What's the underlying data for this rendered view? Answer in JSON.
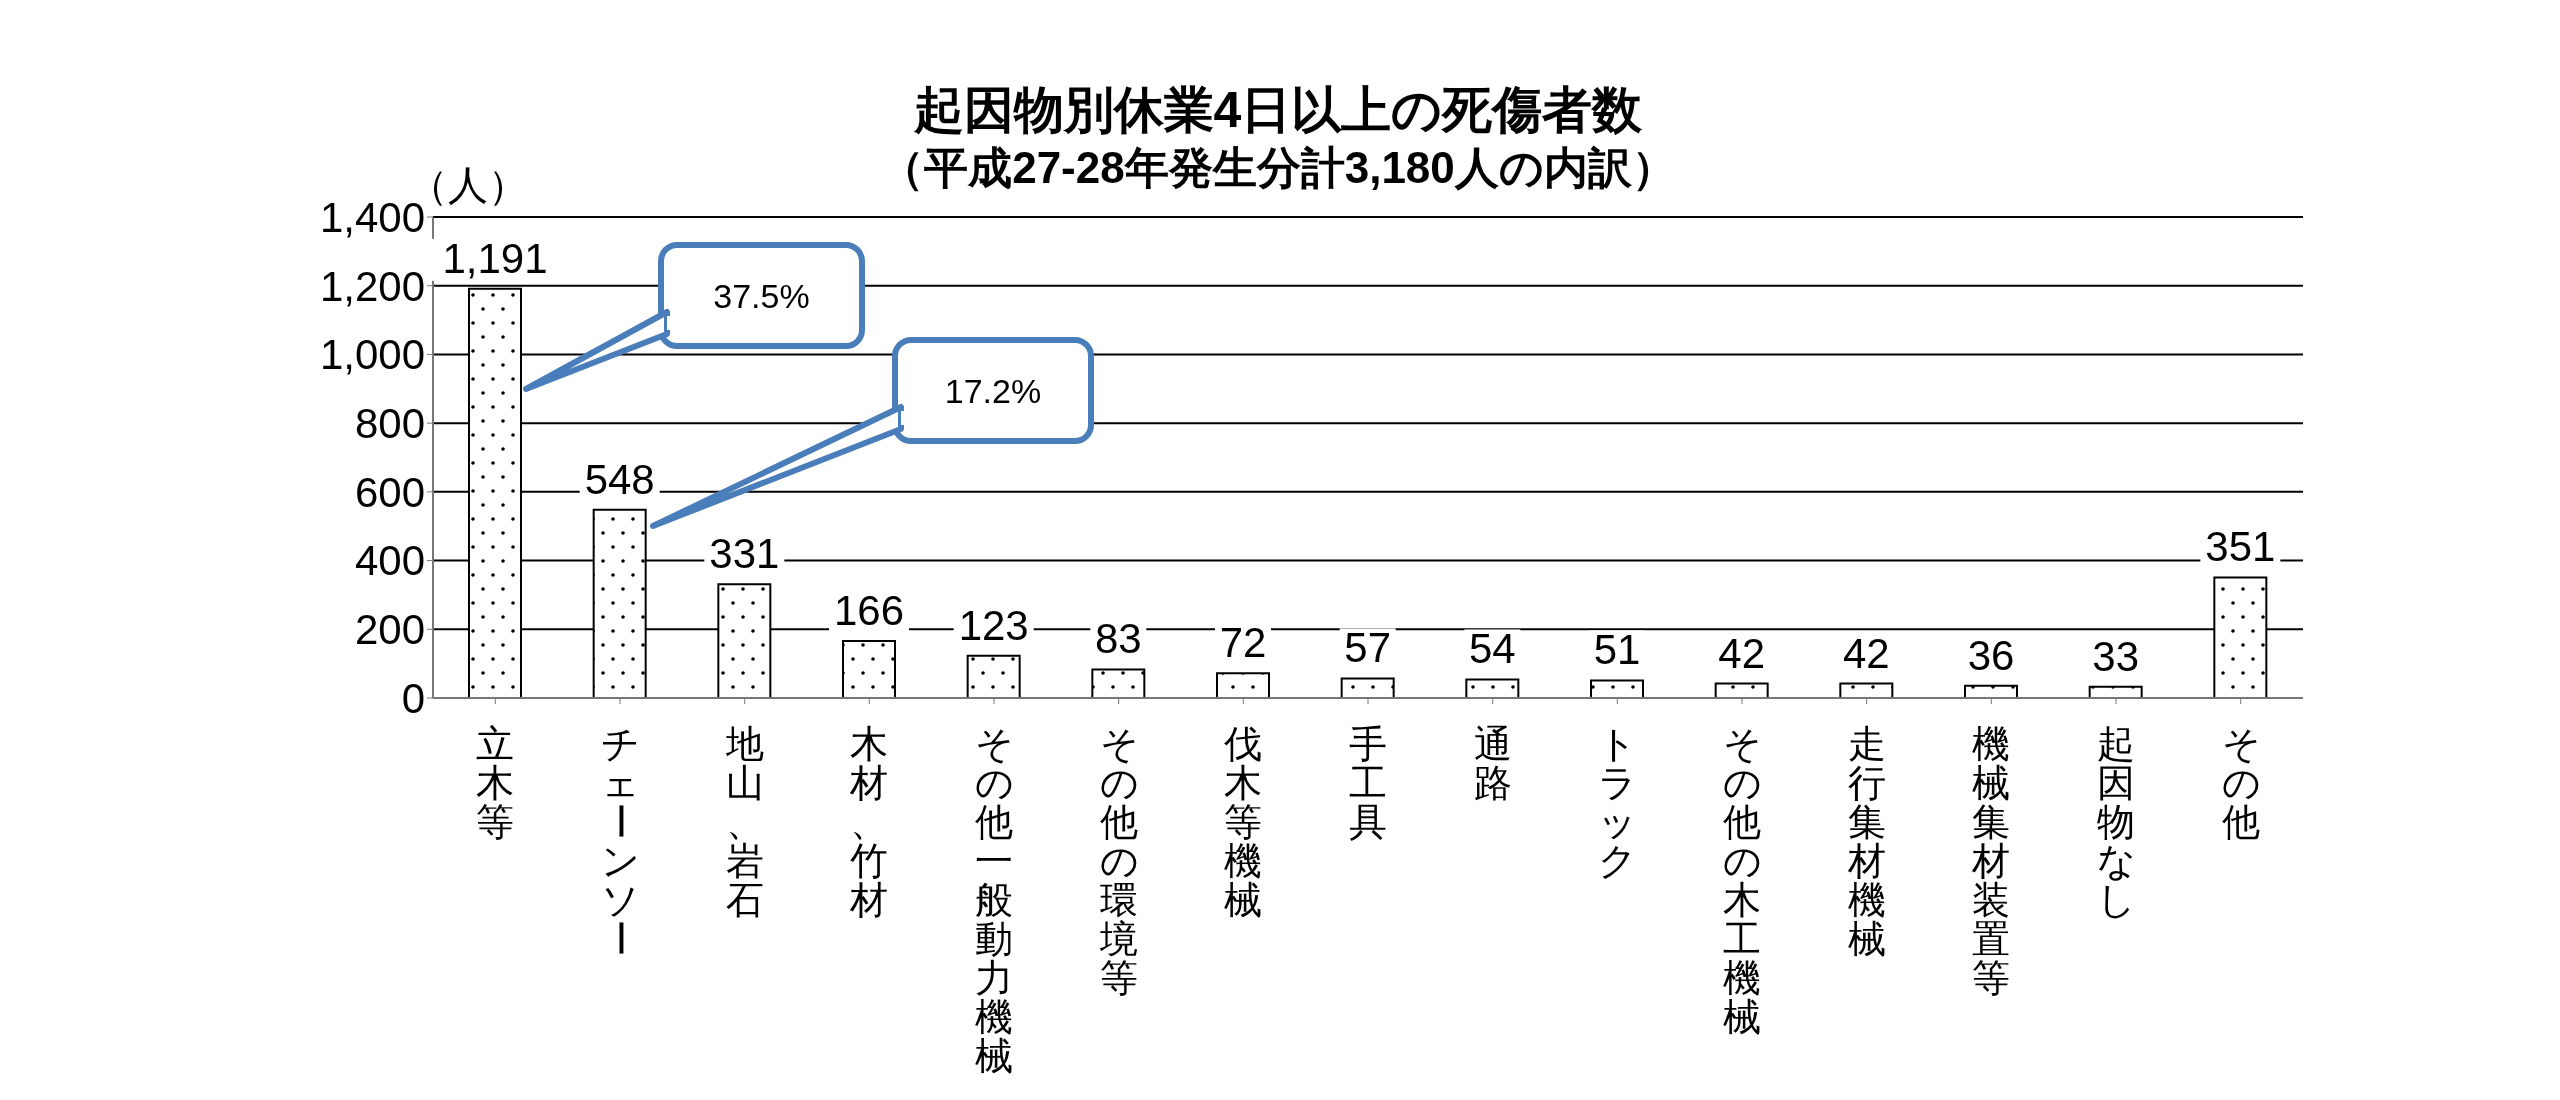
{
  "chart_data": {
    "type": "bar",
    "title": "起因物別休業4日以上の死傷者数",
    "subtitle": "（平成27-28年発生分計3,180人の内訳）",
    "ylabel": "（人）",
    "categories": [
      "立木等",
      "チェーンソー",
      "地山、岩石",
      "木材、竹材",
      "その他一般動力機械",
      "その他の環境等",
      "伐木等機械",
      "手工具",
      "通路",
      "トラック",
      "その他の木工機械",
      "走行集材機械",
      "機械集材装置等",
      "起因物なし",
      "その他"
    ],
    "values": [
      1191,
      548,
      331,
      166,
      123,
      83,
      72,
      57,
      54,
      51,
      42,
      42,
      36,
      33,
      351
    ],
    "value_labels": [
      "1,191",
      "548",
      "331",
      "166",
      "123",
      "83",
      "72",
      "57",
      "54",
      "51",
      "42",
      "42",
      "36",
      "33",
      "351"
    ],
    "color": "#000000",
    "ylim": [
      0,
      1400
    ],
    "yticks": [
      0,
      200,
      400,
      600,
      800,
      {
        "value": 1000,
        "label": "1,000"
      },
      {
        "value": 1200,
        "label": "1,200"
      },
      {
        "value": 1400,
        "label": "1,400"
      }
    ],
    "grid": "y",
    "annotations": [
      "37.5%",
      "17.2%"
    ]
  }
}
